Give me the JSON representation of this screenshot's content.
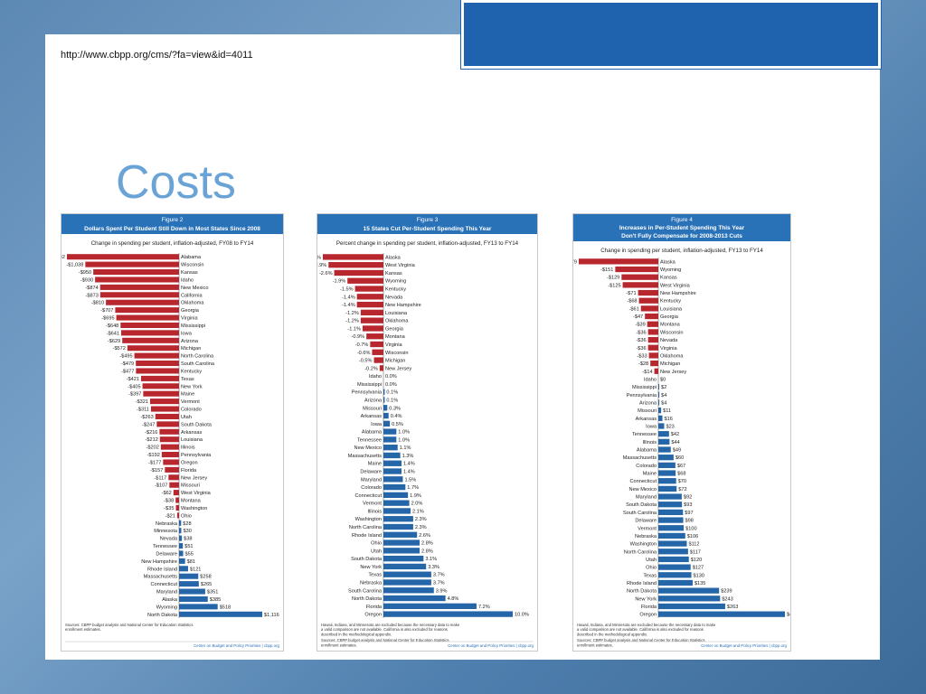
{
  "page": {
    "url": "http://www.cbpp.org/cms/?fa=view&id=4011",
    "title": "Costs",
    "colors": {
      "negative": "#b8262e",
      "positive": "#2466a8",
      "header": "#2a72b8",
      "background": "#5c88b4",
      "accent": "#1f63ae"
    }
  },
  "chart_data": [
    {
      "type": "bar",
      "figure_label": "Figure 2",
      "title": "Dollars Spent Per Student Still Down in Most States Since 2008",
      "subtitle": "Change in spending per student, inflation-adjusted, FY08 to FY14",
      "categories": [
        "Alabama",
        "Wisconsin",
        "Kansas",
        "Idaho",
        "New Mexico",
        "California",
        "Oklahoma",
        "Georgia",
        "Virginia",
        "Mississippi",
        "Iowa",
        "Arizona",
        "Michigan",
        "North Carolina",
        "South Carolina",
        "Kentucky",
        "Texas",
        "New York",
        "Maine",
        "Vermont",
        "Colorado",
        "Utah",
        "South Dakota",
        "Arkansas",
        "Louisiana",
        "Illinois",
        "Pennsylvania",
        "Oregon",
        "Florida",
        "New Jersey",
        "Missouri",
        "West Virginia",
        "Montana",
        "Washington",
        "Ohio",
        "Nebraska",
        "Minnesota",
        "Nevada",
        "Tennessee",
        "Delaware",
        "New Hampshire",
        "Rhode Island",
        "Massachusetts",
        "Connecticut",
        "Maryland",
        "Alaska",
        "Wyoming",
        "North Dakota"
      ],
      "values": [
        -1242,
        -1038,
        -950,
        -930,
        -874,
        -873,
        -810,
        -707,
        -695,
        -648,
        -641,
        -629,
        -572,
        -495,
        -479,
        -477,
        -421,
        -405,
        -397,
        -321,
        -311,
        -263,
        -247,
        -216,
        -212,
        -202,
        -192,
        -177,
        -157,
        -117,
        -107,
        -62,
        -38,
        -35,
        -21,
        28,
        30,
        38,
        51,
        55,
        81,
        121,
        258,
        265,
        351,
        385,
        518,
        1116
      ],
      "labels": [
        "-$1,242",
        "-$1,038",
        "-$950",
        "-$930",
        "-$874",
        "-$873",
        "-$810",
        "-$707",
        "-$695",
        "-$648",
        "-$641",
        "-$629",
        "-$572",
        "-$495",
        "-$479",
        "-$477",
        "-$421",
        "-$405",
        "-$397",
        "-$321",
        "-$311",
        "-$263",
        "-$247",
        "-$216",
        "-$212",
        "-$202",
        "-$192",
        "-$177",
        "-$157",
        "-$117",
        "-$107",
        "-$62",
        "-$38",
        "-$35",
        "-$21",
        "$28",
        "$30",
        "$38",
        "$51",
        "$55",
        "$81",
        "$121",
        "$258",
        "$265",
        "$351",
        "$385",
        "$518",
        "$1,116"
      ],
      "xlim": [
        -1242,
        1116
      ],
      "notes": [
        "Sources: CBPP budget analysis and National Center for Education Statistics enrollment estimates."
      ],
      "credit": "Center on Budget and Policy Priorities | cbpp.org"
    },
    {
      "type": "bar",
      "figure_label": "Figure 3",
      "title": "15 States Cut Per-Student Spending This Year",
      "subtitle": "Percent change in spending per student, inflation-adjusted, FY13 to FY14",
      "categories": [
        "Alaska",
        "West Virginia",
        "Kansas",
        "Wyoming",
        "Kentucky",
        "Nevada",
        "New Hampshire",
        "Louisiana",
        "Oklahoma",
        "Georgia",
        "Montana",
        "Virginia",
        "Wisconsin",
        "Michigan",
        "New Jersey",
        "Idaho",
        "Mississippi",
        "Pennsylvania",
        "Arizona",
        "Missouri",
        "Arkansas",
        "Iowa",
        "Alabama",
        "Tennessee",
        "New Mexico",
        "Massachusetts",
        "Maine",
        "Delaware",
        "Maryland",
        "Colorado",
        "Connecticut",
        "Vermont",
        "Illinois",
        "Washington",
        "North Carolina",
        "Rhode Island",
        "Ohio",
        "Utah",
        "South Dakota",
        "New York",
        "Texas",
        "Nebraska",
        "South Carolina",
        "North Dakota",
        "Florida",
        "Oregon"
      ],
      "values": [
        -3.2,
        -2.9,
        -2.6,
        -1.9,
        -1.5,
        -1.4,
        -1.4,
        -1.2,
        -1.2,
        -1.1,
        -0.9,
        -0.7,
        -0.6,
        -0.5,
        -0.2,
        0.0,
        0.0,
        0.1,
        0.1,
        0.3,
        0.4,
        0.5,
        1.0,
        1.0,
        1.1,
        1.3,
        1.4,
        1.4,
        1.5,
        1.7,
        1.9,
        2.0,
        2.1,
        2.3,
        2.3,
        2.6,
        2.8,
        2.8,
        3.1,
        3.3,
        3.7,
        3.7,
        3.9,
        4.8,
        7.2,
        10.0
      ],
      "labels": [
        "-3.2%",
        "-2.9%",
        "-2.6%",
        "-1.9%",
        "-1.5%",
        "-1.4%",
        "-1.4%",
        "-1.2%",
        "-1.2%",
        "-1.1%",
        "-0.9%",
        "-0.7%",
        "-0.6%",
        "-0.5%",
        "-0.2%",
        "0.0%",
        "0.0%",
        "0.1%",
        "0.1%",
        "0.3%",
        "0.4%",
        "0.5%",
        "1.0%",
        "1.0%",
        "1.1%",
        "1.3%",
        "1.4%",
        "1.4%",
        "1.5%",
        "1.7%",
        "1.9%",
        "2.0%",
        "2.1%",
        "2.3%",
        "2.3%",
        "2.6%",
        "2.8%",
        "2.8%",
        "3.1%",
        "3.3%",
        "3.7%",
        "3.7%",
        "3.9%",
        "4.8%",
        "7.2%",
        "10.0%"
      ],
      "xlim": [
        -3.2,
        10.0
      ],
      "notes": [
        "Hawaii, Indiana, and Minnesota are excluded because the necessary data to make a valid comparison are not available. California is also excluded for reasons described in the methodological appendix.",
        "Sources: CBPP budget analysis and National Center for Education Statistics enrollment estimates."
      ],
      "credit": "Center on Budget and Policy Priorities | cbpp.org"
    },
    {
      "type": "bar",
      "figure_label": "Figure 4",
      "title": "Increases in Per-Student Spending This Year Don't Fully Compensate for 2008-2013 Cuts",
      "subtitle": "Change in spending per student, inflation-adjusted, FY13 to FY14",
      "categories": [
        "Alaska",
        "Wyoming",
        "Kansas",
        "West Virginia",
        "New Hampshire",
        "Kentucky",
        "Louisiana",
        "Georgia",
        "Montana",
        "Wisconsin",
        "Nevada",
        "Virginia",
        "Oklahoma",
        "Michigan",
        "New Jersey",
        "Idaho",
        "Mississippi",
        "Pennsylvania",
        "Arizona",
        "Missouri",
        "Arkansas",
        "Iowa",
        "Tennessee",
        "Illinois",
        "Alabama",
        "Massachusetts",
        "Colorado",
        "Maine",
        "Connecticut",
        "New Mexico",
        "Maryland",
        "South Dakota",
        "South Carolina",
        "Delaware",
        "Vermont",
        "Nebraska",
        "Washington",
        "North Carolina",
        "Utah",
        "Ohio",
        "Texas",
        "Rhode Island",
        "North Dakota",
        "New York",
        "Florida",
        "Oregon"
      ],
      "values": [
        -279,
        -151,
        -129,
        -125,
        -71,
        -68,
        -61,
        -47,
        -39,
        -36,
        -36,
        -36,
        -33,
        -28,
        -14,
        0,
        2,
        4,
        4,
        11,
        16,
        23,
        42,
        44,
        49,
        60,
        67,
        68,
        70,
        72,
        92,
        93,
        97,
        98,
        100,
        106,
        112,
        117,
        120,
        127,
        130,
        135,
        239,
        243,
        263,
        498
      ],
      "labels": [
        "-$279",
        "-$151",
        "-$129",
        "-$125",
        "-$71",
        "-$68",
        "-$61",
        "-$47",
        "-$39",
        "-$36",
        "-$36",
        "-$36",
        "-$33",
        "-$28",
        "-$14",
        "$0",
        "$2",
        "$4",
        "$4",
        "$11",
        "$16",
        "$23",
        "$42",
        "$44",
        "$49",
        "$60",
        "$67",
        "$68",
        "$70",
        "$72",
        "$92",
        "$93",
        "$97",
        "$98",
        "$100",
        "$106",
        "$112",
        "$117",
        "$120",
        "$127",
        "$130",
        "$135",
        "$239",
        "$243",
        "$263",
        "$498"
      ],
      "xlim": [
        -279,
        498
      ],
      "notes": [
        "Hawaii, Indiana, and Minnesota are excluded because the necessary data to make a valid comparison are not available. California is also excluded for reasons described in the methodological appendix.",
        "Sources: CBPP budget analysis and National Center for Education Statistics enrollment estimates."
      ],
      "credit": "Center on Budget and Policy Priorities | cbpp.org"
    }
  ]
}
